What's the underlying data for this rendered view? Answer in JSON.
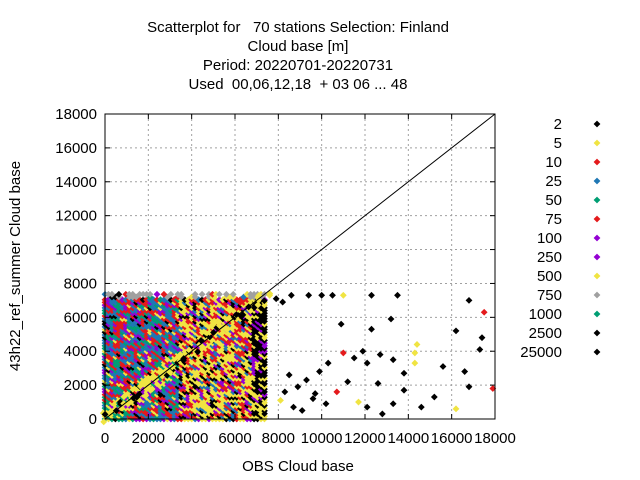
{
  "chart_data": {
    "type": "scatter",
    "title_lines": [
      "Scatterplot for   70 stations Selection: Finland",
      "Cloud base [m]",
      "Period: 20220701-20220731",
      "Used  00,06,12,18  + 03 06 ... 48"
    ],
    "xlabel": "OBS Cloud base",
    "ylabel": "43h22_ref_summer Cloud base",
    "xlim": [
      0,
      18000
    ],
    "ylim": [
      0,
      18000
    ],
    "x_ticks": [
      0,
      2000,
      4000,
      6000,
      8000,
      10000,
      12000,
      14000,
      16000,
      18000
    ],
    "y_ticks": [
      0,
      2000,
      4000,
      6000,
      8000,
      10000,
      12000,
      14000,
      16000,
      18000
    ],
    "x_tick_labels": [
      "0",
      "2000",
      "4000",
      "6000",
      "8000",
      "10000",
      "12000",
      "14000",
      "16000",
      "18000"
    ],
    "y_tick_labels": [
      "0",
      "2000",
      "4000",
      "6000",
      "8000",
      "10000",
      "12000",
      "14000",
      "16000",
      "18000"
    ],
    "grid": true,
    "diagonal": [
      [
        0,
        0
      ],
      [
        18000,
        18000
      ]
    ],
    "legend_position": "right",
    "legend": [
      {
        "label": "2",
        "color": "#000000"
      },
      {
        "label": "5",
        "color": "#f0e442"
      },
      {
        "label": "10",
        "color": "#e41a1c"
      },
      {
        "label": "25",
        "color": "#1f77b4"
      },
      {
        "label": "50",
        "color": "#009e73"
      },
      {
        "label": "75",
        "color": "#e41a1c"
      },
      {
        "label": "100",
        "color": "#9400d3"
      },
      {
        "label": "250",
        "color": "#9400d3"
      },
      {
        "label": "500",
        "color": "#f0e442"
      },
      {
        "label": "750",
        "color": "#a0a0a0"
      },
      {
        "label": "1000",
        "color": "#009e73"
      },
      {
        "label": "2500",
        "color": "#000000"
      },
      {
        "label": "25000",
        "color": "#000000"
      }
    ],
    "dense_region": {
      "x": [
        0,
        7500
      ],
      "y": [
        0,
        7500
      ]
    },
    "sparse_points": [
      [
        7600,
        7300
      ],
      [
        7900,
        7100
      ],
      [
        8200,
        6900
      ],
      [
        8600,
        7300
      ],
      [
        9400,
        7300
      ],
      [
        10000,
        7300
      ],
      [
        10500,
        7300
      ],
      [
        11000,
        7300
      ],
      [
        12300,
        7300
      ],
      [
        13500,
        7300
      ],
      [
        16800,
        7000
      ],
      [
        17500,
        6300
      ],
      [
        16200,
        5200
      ],
      [
        17400,
        4800
      ],
      [
        14300,
        3300
      ],
      [
        12300,
        5300
      ],
      [
        11900,
        4000
      ],
      [
        12700,
        3800
      ],
      [
        12100,
        3300
      ],
      [
        13300,
        3500
      ],
      [
        13800,
        2700
      ],
      [
        14300,
        3900
      ],
      [
        11000,
        3900
      ],
      [
        10300,
        3300
      ],
      [
        9900,
        2800
      ],
      [
        9300,
        2300
      ],
      [
        8900,
        1900
      ],
      [
        8300,
        1600
      ],
      [
        8100,
        1100
      ],
      [
        8700,
        700
      ],
      [
        9100,
        500
      ],
      [
        9600,
        1200
      ],
      [
        10200,
        900
      ],
      [
        10700,
        1600
      ],
      [
        11200,
        2200
      ],
      [
        11700,
        1000
      ],
      [
        12100,
        700
      ],
      [
        12800,
        300
      ],
      [
        13300,
        900
      ],
      [
        13800,
        1700
      ],
      [
        14600,
        700
      ],
      [
        15200,
        1300
      ],
      [
        16200,
        600
      ],
      [
        16800,
        1900
      ],
      [
        17900,
        1800
      ],
      [
        17300,
        4100
      ],
      [
        16600,
        2800
      ],
      [
        10900,
        5600
      ],
      [
        13200,
        5900
      ],
      [
        14400,
        4400
      ],
      [
        9700,
        1500
      ],
      [
        8500,
        2600
      ],
      [
        11500,
        3600
      ],
      [
        12600,
        2100
      ],
      [
        15600,
        3100
      ]
    ],
    "sparse_colors": [
      "#000000",
      "#f0e442",
      "#e41a1c"
    ]
  }
}
